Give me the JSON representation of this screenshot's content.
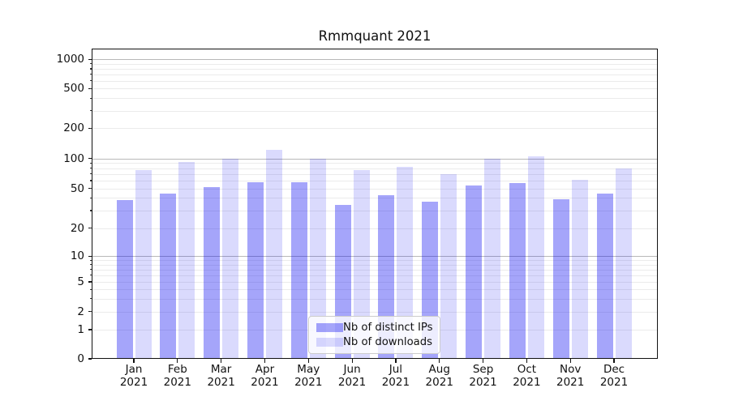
{
  "chart_data": {
    "type": "bar",
    "title": "Rmmquant 2021",
    "xlabel": "",
    "ylabel": "",
    "x_months": [
      "Jan",
      "Feb",
      "Mar",
      "Apr",
      "May",
      "Jun",
      "Jul",
      "Aug",
      "Sep",
      "Oct",
      "Nov",
      "Dec"
    ],
    "x_year": "2021",
    "series": [
      {
        "name": "Nb of distinct IPs",
        "color": "rgba(5,5,240,0.36)",
        "values": [
          38,
          44,
          52,
          58,
          58,
          34,
          43,
          37,
          54,
          57,
          39,
          44
        ]
      },
      {
        "name": "Nb of downloads",
        "color": "rgba(5,5,240,0.15)",
        "values": [
          76,
          93,
          100,
          123,
          100,
          76,
          82,
          70,
          100,
          106,
          61,
          79
        ]
      }
    ],
    "yscale": "symlog",
    "yticks": [
      0,
      1,
      2,
      5,
      10,
      20,
      50,
      100,
      200,
      500,
      1000
    ],
    "ylim": [
      0,
      1280
    ],
    "grid": "horizontal, major gridlines at powers of 10, faint minor gridlines",
    "legend_position": "lower center"
  },
  "colors": {
    "background": "#ffffff",
    "bar_dark": "#a5a5f2",
    "bar_light": "#dcdcfa",
    "major_grid": "#b8b8b8",
    "minor_grid": "#ebebeb",
    "spine": "#111111",
    "text": "#111111",
    "legend_border": "#cccccc"
  }
}
